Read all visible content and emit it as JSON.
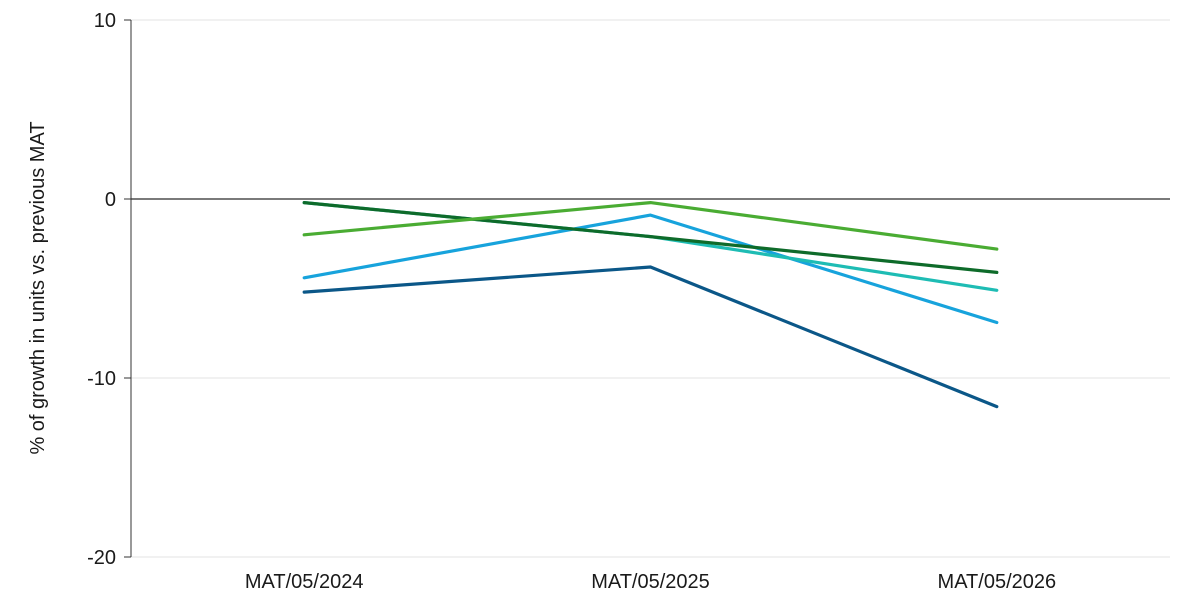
{
  "chart_data": {
    "type": "line",
    "title": "",
    "xlabel": "",
    "ylabel": "% of growth in units vs. previous MAT",
    "categories": [
      "MAT/05/2024",
      "MAT/05/2025",
      "MAT/05/2026"
    ],
    "ylim": [
      -20,
      10
    ],
    "yticks": [
      10,
      0,
      -10,
      -20
    ],
    "grid": true,
    "legend": "none",
    "series": [
      {
        "values": [
          -5.2,
          -3.8,
          -11.6
        ],
        "color": "#0b5788"
      },
      {
        "values": [
          -4.4,
          -0.9,
          -6.9
        ],
        "color": "#17a3dc"
      },
      {
        "values": [
          -0.2,
          -2.1,
          -5.1
        ],
        "color": "#1ebcb4"
      },
      {
        "values": [
          -0.2,
          -2.1,
          -4.1
        ],
        "color": "#0e6b2a"
      },
      {
        "values": [
          -2.0,
          -0.2,
          -2.8
        ],
        "color": "#4aac33"
      }
    ]
  }
}
